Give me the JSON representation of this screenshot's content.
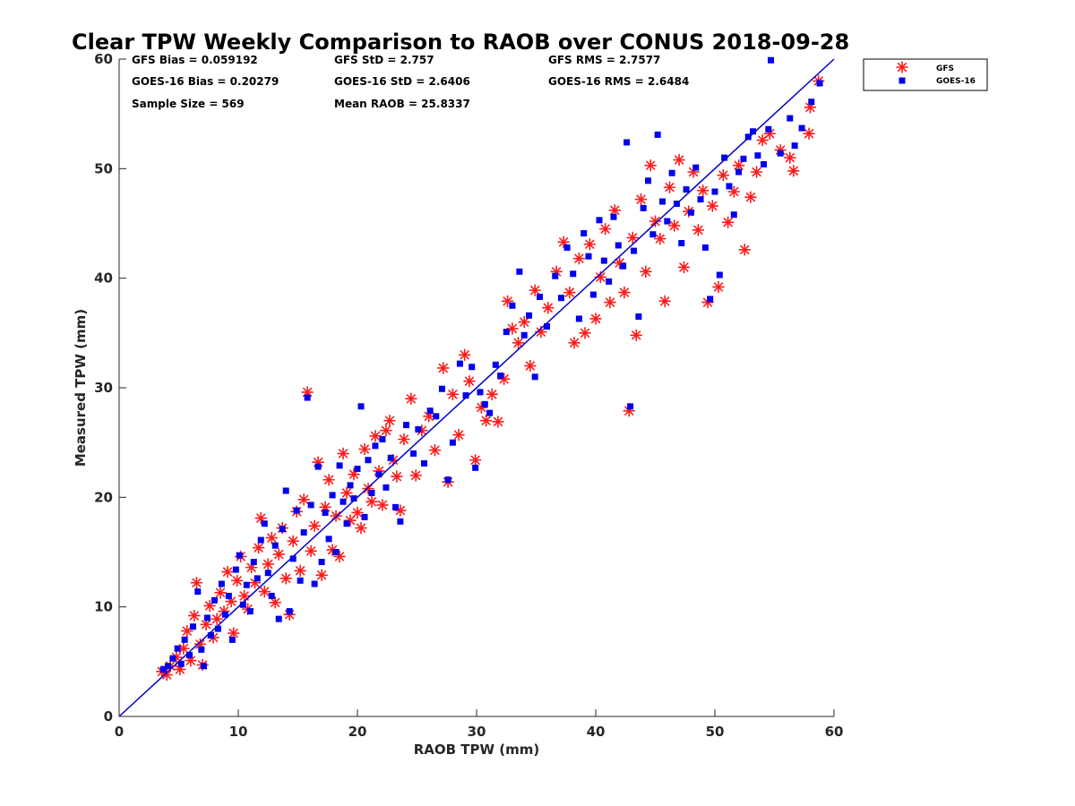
{
  "chart_data": {
    "type": "scatter",
    "title": "Clear TPW Weekly Comparison to RAOB over CONUS 2018-09-28",
    "xlabel": "RAOB TPW (mm)",
    "ylabel": "Measured TPW (mm)",
    "xlim": [
      0,
      60
    ],
    "ylim": [
      0,
      60
    ],
    "xticks": [
      "0",
      "10",
      "20",
      "30",
      "40",
      "50",
      "60"
    ],
    "yticks": [
      "0",
      "10",
      "20",
      "30",
      "40",
      "50",
      "60"
    ],
    "grid": false,
    "legend_position": "top-right outside",
    "stats": [
      "GFS Bias = 0.059192",
      "GFS StD = 2.757",
      "GFS RMS = 2.7577",
      "GOES-16 Bias = 0.20279",
      "GOES-16 StD = 2.6406",
      "GOES-16 RMS = 2.6484",
      "Sample Size = 569",
      "Mean RAOB = 25.8337"
    ],
    "reference_line": {
      "label": "",
      "x": [
        0,
        60
      ],
      "y": [
        0,
        60
      ],
      "color": "#0000cc"
    },
    "series": [
      {
        "name": "GFS",
        "marker": "asterisk",
        "color": "#ff1a1a",
        "points": [
          [
            3.6,
            4.1
          ],
          [
            4.0,
            3.8
          ],
          [
            4.3,
            4.6
          ],
          [
            4.8,
            5.4
          ],
          [
            5.1,
            4.3
          ],
          [
            5.4,
            6.2
          ],
          [
            5.7,
            7.8
          ],
          [
            6.0,
            5.1
          ],
          [
            6.3,
            9.2
          ],
          [
            6.5,
            12.2
          ],
          [
            6.8,
            6.6
          ],
          [
            7.0,
            4.7
          ],
          [
            7.3,
            8.4
          ],
          [
            7.6,
            10.1
          ],
          [
            7.9,
            7.2
          ],
          [
            8.2,
            8.9
          ],
          [
            8.5,
            11.3
          ],
          [
            8.8,
            9.6
          ],
          [
            9.1,
            13.2
          ],
          [
            9.4,
            10.5
          ],
          [
            9.6,
            7.6
          ],
          [
            9.9,
            12.4
          ],
          [
            10.2,
            14.6
          ],
          [
            10.5,
            11.0
          ],
          [
            10.8,
            9.8
          ],
          [
            11.1,
            13.6
          ],
          [
            11.4,
            12.2
          ],
          [
            11.7,
            15.4
          ],
          [
            11.9,
            18.1
          ],
          [
            12.2,
            11.4
          ],
          [
            12.5,
            13.9
          ],
          [
            12.8,
            16.3
          ],
          [
            13.1,
            10.4
          ],
          [
            13.4,
            14.8
          ],
          [
            13.7,
            17.2
          ],
          [
            14.0,
            12.6
          ],
          [
            14.3,
            9.3
          ],
          [
            14.6,
            16.0
          ],
          [
            14.9,
            18.7
          ],
          [
            15.2,
            13.3
          ],
          [
            15.5,
            19.8
          ],
          [
            15.8,
            29.6
          ],
          [
            16.1,
            15.1
          ],
          [
            16.4,
            17.4
          ],
          [
            16.7,
            23.2
          ],
          [
            17.0,
            12.9
          ],
          [
            17.3,
            19.1
          ],
          [
            17.6,
            21.6
          ],
          [
            17.9,
            15.2
          ],
          [
            18.2,
            18.3
          ],
          [
            18.5,
            14.6
          ],
          [
            18.8,
            24.0
          ],
          [
            19.1,
            20.4
          ],
          [
            19.4,
            17.9
          ],
          [
            19.7,
            22.1
          ],
          [
            20.0,
            18.6
          ],
          [
            20.3,
            17.2
          ],
          [
            20.6,
            24.4
          ],
          [
            20.9,
            20.8
          ],
          [
            21.2,
            19.6
          ],
          [
            21.5,
            25.6
          ],
          [
            21.8,
            22.4
          ],
          [
            22.1,
            19.3
          ],
          [
            22.4,
            26.1
          ],
          [
            22.7,
            27.0
          ],
          [
            23.0,
            23.4
          ],
          [
            23.3,
            21.9
          ],
          [
            23.6,
            18.8
          ],
          [
            23.9,
            25.3
          ],
          [
            24.5,
            29.0
          ],
          [
            24.9,
            22.0
          ],
          [
            25.4,
            26.1
          ],
          [
            26.0,
            27.4
          ],
          [
            26.5,
            24.3
          ],
          [
            27.2,
            31.8
          ],
          [
            27.6,
            21.4
          ],
          [
            28.0,
            29.4
          ],
          [
            28.5,
            25.7
          ],
          [
            29.0,
            33.0
          ],
          [
            29.4,
            30.6
          ],
          [
            29.9,
            23.4
          ],
          [
            30.4,
            28.2
          ],
          [
            30.8,
            27.0
          ],
          [
            31.3,
            29.4
          ],
          [
            31.8,
            26.9
          ],
          [
            32.3,
            30.8
          ],
          [
            32.6,
            37.9
          ],
          [
            33.0,
            35.4
          ],
          [
            33.5,
            34.1
          ],
          [
            34.0,
            36.0
          ],
          [
            34.5,
            32.0
          ],
          [
            34.9,
            38.9
          ],
          [
            35.4,
            35.1
          ],
          [
            36.0,
            37.3
          ],
          [
            36.7,
            40.6
          ],
          [
            37.3,
            43.3
          ],
          [
            37.8,
            38.7
          ],
          [
            38.2,
            34.1
          ],
          [
            38.6,
            41.8
          ],
          [
            39.1,
            35.0
          ],
          [
            39.5,
            43.1
          ],
          [
            40.0,
            36.3
          ],
          [
            40.4,
            40.1
          ],
          [
            40.8,
            44.5
          ],
          [
            41.2,
            37.8
          ],
          [
            41.6,
            46.2
          ],
          [
            42.0,
            41.4
          ],
          [
            42.4,
            38.7
          ],
          [
            42.8,
            27.9
          ],
          [
            43.1,
            43.7
          ],
          [
            43.4,
            34.8
          ],
          [
            43.8,
            47.2
          ],
          [
            44.2,
            40.6
          ],
          [
            44.6,
            50.3
          ],
          [
            45.0,
            45.2
          ],
          [
            45.4,
            43.6
          ],
          [
            45.8,
            37.9
          ],
          [
            46.2,
            48.3
          ],
          [
            46.6,
            44.8
          ],
          [
            47.0,
            50.8
          ],
          [
            47.4,
            41.0
          ],
          [
            47.8,
            46.1
          ],
          [
            48.2,
            49.7
          ],
          [
            48.6,
            44.4
          ],
          [
            49.0,
            48.0
          ],
          [
            49.4,
            37.8
          ],
          [
            49.8,
            46.6
          ],
          [
            50.3,
            39.2
          ],
          [
            50.7,
            49.4
          ],
          [
            51.1,
            45.1
          ],
          [
            51.6,
            47.9
          ],
          [
            52.0,
            50.3
          ],
          [
            52.5,
            42.6
          ],
          [
            53.0,
            47.4
          ],
          [
            53.5,
            49.7
          ],
          [
            54.0,
            52.6
          ],
          [
            54.6,
            53.2
          ],
          [
            55.5,
            51.7
          ],
          [
            56.3,
            51.0
          ],
          [
            56.6,
            49.8
          ],
          [
            57.9,
            53.2
          ],
          [
            58.0,
            55.6
          ],
          [
            58.7,
            58.0
          ]
        ]
      },
      {
        "name": "GOES-16",
        "marker": "square",
        "color": "#0000ee",
        "points": [
          [
            3.7,
            4.3
          ],
          [
            4.1,
            4.6
          ],
          [
            4.5,
            5.3
          ],
          [
            4.9,
            6.2
          ],
          [
            5.2,
            4.8
          ],
          [
            5.5,
            7.0
          ],
          [
            5.9,
            5.6
          ],
          [
            6.2,
            8.2
          ],
          [
            6.6,
            11.4
          ],
          [
            6.9,
            6.1
          ],
          [
            7.1,
            4.6
          ],
          [
            7.4,
            9.0
          ],
          [
            7.7,
            7.4
          ],
          [
            8.0,
            10.6
          ],
          [
            8.3,
            8.0
          ],
          [
            8.6,
            12.1
          ],
          [
            8.9,
            9.3
          ],
          [
            9.2,
            11.0
          ],
          [
            9.5,
            7.0
          ],
          [
            9.8,
            13.4
          ],
          [
            10.1,
            14.7
          ],
          [
            10.4,
            10.2
          ],
          [
            10.7,
            12.0
          ],
          [
            11.0,
            9.6
          ],
          [
            11.3,
            14.1
          ],
          [
            11.6,
            12.6
          ],
          [
            11.9,
            16.1
          ],
          [
            12.2,
            17.6
          ],
          [
            12.5,
            13.1
          ],
          [
            12.8,
            11.0
          ],
          [
            13.1,
            15.6
          ],
          [
            13.4,
            8.9
          ],
          [
            13.7,
            17.1
          ],
          [
            14.0,
            20.6
          ],
          [
            14.3,
            9.6
          ],
          [
            14.6,
            14.4
          ],
          [
            14.9,
            18.8
          ],
          [
            15.2,
            12.4
          ],
          [
            15.5,
            16.8
          ],
          [
            15.8,
            29.1
          ],
          [
            16.1,
            19.3
          ],
          [
            16.4,
            12.1
          ],
          [
            16.7,
            22.8
          ],
          [
            17.0,
            14.1
          ],
          [
            17.3,
            18.6
          ],
          [
            17.6,
            16.2
          ],
          [
            17.9,
            20.2
          ],
          [
            18.2,
            15.0
          ],
          [
            18.5,
            22.9
          ],
          [
            18.8,
            19.6
          ],
          [
            19.1,
            17.6
          ],
          [
            19.4,
            21.1
          ],
          [
            19.7,
            19.9
          ],
          [
            20.0,
            22.6
          ],
          [
            20.3,
            28.3
          ],
          [
            20.6,
            18.2
          ],
          [
            20.9,
            23.4
          ],
          [
            21.2,
            20.4
          ],
          [
            21.5,
            24.7
          ],
          [
            21.8,
            22.1
          ],
          [
            22.1,
            25.3
          ],
          [
            22.4,
            20.9
          ],
          [
            22.8,
            23.6
          ],
          [
            23.2,
            19.1
          ],
          [
            23.6,
            17.8
          ],
          [
            24.1,
            26.6
          ],
          [
            24.7,
            24.0
          ],
          [
            25.1,
            26.2
          ],
          [
            25.6,
            23.1
          ],
          [
            26.1,
            27.9
          ],
          [
            26.6,
            27.4
          ],
          [
            27.1,
            29.9
          ],
          [
            27.6,
            21.6
          ],
          [
            28.0,
            25.0
          ],
          [
            28.6,
            32.2
          ],
          [
            29.1,
            29.3
          ],
          [
            29.6,
            31.9
          ],
          [
            29.9,
            22.7
          ],
          [
            30.3,
            29.6
          ],
          [
            30.7,
            28.5
          ],
          [
            31.1,
            27.7
          ],
          [
            31.6,
            32.1
          ],
          [
            32.0,
            31.1
          ],
          [
            32.5,
            35.1
          ],
          [
            33.0,
            37.5
          ],
          [
            33.6,
            40.6
          ],
          [
            34.0,
            34.8
          ],
          [
            34.4,
            36.6
          ],
          [
            34.9,
            31.0
          ],
          [
            35.3,
            38.3
          ],
          [
            35.9,
            35.6
          ],
          [
            36.6,
            40.2
          ],
          [
            37.1,
            38.2
          ],
          [
            37.6,
            42.8
          ],
          [
            38.1,
            40.4
          ],
          [
            38.6,
            36.3
          ],
          [
            39.0,
            44.1
          ],
          [
            39.4,
            42.0
          ],
          [
            39.8,
            38.5
          ],
          [
            40.3,
            45.3
          ],
          [
            40.7,
            41.6
          ],
          [
            41.1,
            39.7
          ],
          [
            41.5,
            45.6
          ],
          [
            41.9,
            43.0
          ],
          [
            42.3,
            41.1
          ],
          [
            42.6,
            52.4
          ],
          [
            42.9,
            28.3
          ],
          [
            43.2,
            42.5
          ],
          [
            43.6,
            36.5
          ],
          [
            44.0,
            46.4
          ],
          [
            44.4,
            48.9
          ],
          [
            44.8,
            44.0
          ],
          [
            45.2,
            53.1
          ],
          [
            45.6,
            47.0
          ],
          [
            46.0,
            45.2
          ],
          [
            46.4,
            49.6
          ],
          [
            46.8,
            46.8
          ],
          [
            47.2,
            43.2
          ],
          [
            47.6,
            48.1
          ],
          [
            48.0,
            46.0
          ],
          [
            48.4,
            50.1
          ],
          [
            48.8,
            47.2
          ],
          [
            49.2,
            42.8
          ],
          [
            49.6,
            38.1
          ],
          [
            50.0,
            47.9
          ],
          [
            50.4,
            40.3
          ],
          [
            50.8,
            51.0
          ],
          [
            51.2,
            48.4
          ],
          [
            51.6,
            45.8
          ],
          [
            52.0,
            49.7
          ],
          [
            52.4,
            50.9
          ],
          [
            52.8,
            52.9
          ],
          [
            53.2,
            53.4
          ],
          [
            53.6,
            51.2
          ],
          [
            54.1,
            50.4
          ],
          [
            54.5,
            53.6
          ],
          [
            54.7,
            59.9
          ],
          [
            55.5,
            51.4
          ],
          [
            56.3,
            54.6
          ],
          [
            56.7,
            52.1
          ],
          [
            57.3,
            53.7
          ],
          [
            58.1,
            56.1
          ],
          [
            58.8,
            57.8
          ]
        ]
      }
    ]
  }
}
